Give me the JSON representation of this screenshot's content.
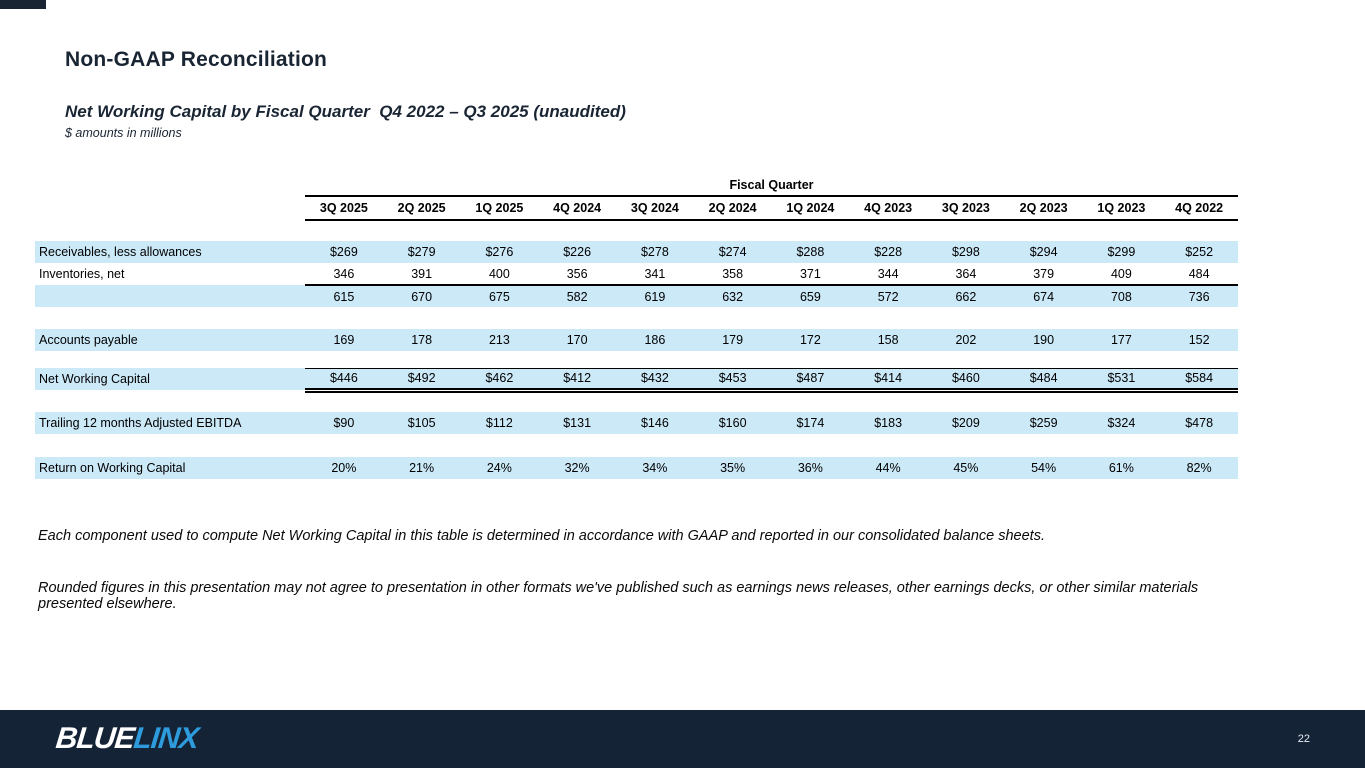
{
  "slide": {
    "title": "Non-GAAP Reconciliation",
    "subtitle": "Net Working Capital by Fiscal Quarter  Q4 2022 – Q3 2025 (unaudited)",
    "units_note": "$ amounts in millions"
  },
  "table": {
    "group_header": "Fiscal Quarter",
    "columns": [
      "3Q 2025",
      "2Q 2025",
      "1Q 2025",
      "4Q 2024",
      "3Q 2024",
      "2Q 2024",
      "1Q 2024",
      "4Q 2023",
      "3Q 2023",
      "2Q 2023",
      "1Q 2023",
      "4Q 2022"
    ],
    "rows": [
      {
        "type": "spacer",
        "height": 21
      },
      {
        "type": "data",
        "kind": "hl",
        "label": "Receivables, less allowances",
        "values": [
          "$269",
          "$279",
          "$276",
          "$226",
          "$278",
          "$274",
          "$288",
          "$228",
          "$298",
          "$294",
          "$299",
          "$252"
        ]
      },
      {
        "type": "data",
        "kind": "rule",
        "label": "Inventories, net",
        "values": [
          "346",
          "391",
          "400",
          "356",
          "341",
          "358",
          "371",
          "344",
          "364",
          "379",
          "409",
          "484"
        ]
      },
      {
        "type": "subtotal",
        "kind": "hl",
        "label": "",
        "values": [
          "615",
          "670",
          "675",
          "582",
          "619",
          "632",
          "659",
          "572",
          "662",
          "674",
          "708",
          "736"
        ]
      },
      {
        "type": "spacer",
        "height": 22
      },
      {
        "type": "data",
        "kind": "hl",
        "label": "Accounts payable",
        "values": [
          "169",
          "178",
          "213",
          "170",
          "186",
          "179",
          "172",
          "158",
          "202",
          "190",
          "177",
          "152"
        ]
      },
      {
        "type": "spacer",
        "height": 17
      },
      {
        "type": "total",
        "kind": "hl total",
        "label": "Net Working Capital",
        "values": [
          "$446",
          "$492",
          "$462",
          "$412",
          "$432",
          "$453",
          "$487",
          "$414",
          "$460",
          "$484",
          "$531",
          "$584"
        ]
      },
      {
        "type": "spacer",
        "height": 22
      },
      {
        "type": "data",
        "kind": "hl",
        "label": "Trailing 12 months Adjusted EBITDA",
        "values": [
          "$90",
          "$105",
          "$112",
          "$131",
          "$146",
          "$160",
          "$174",
          "$183",
          "$209",
          "$259",
          "$324",
          "$478"
        ]
      },
      {
        "type": "spacer",
        "height": 23
      },
      {
        "type": "data",
        "kind": "hl",
        "label": "Return on Working Capital",
        "values": [
          "20%",
          "21%",
          "24%",
          "32%",
          "34%",
          "35%",
          "36%",
          "44%",
          "45%",
          "54%",
          "61%",
          "82%"
        ]
      }
    ]
  },
  "footnotes": [
    "Each component used to compute Net Working Capital in this table is determined in accordance with GAAP and reported in our consolidated balance sheets.",
    "Rounded figures in this presentation may not agree to presentation in other formats we've published such as earnings news releases, other earnings decks, or other similar materials presented elsewhere."
  ],
  "footer": {
    "logo_part1": "BLUE",
    "logo_part2": "LINX",
    "page_number": "22"
  },
  "colors": {
    "row_highlight": "#CCE9F8",
    "footer_bg": "#152336",
    "logo_blue": "#2E9BDD",
    "heading_text": "#1A2533"
  }
}
